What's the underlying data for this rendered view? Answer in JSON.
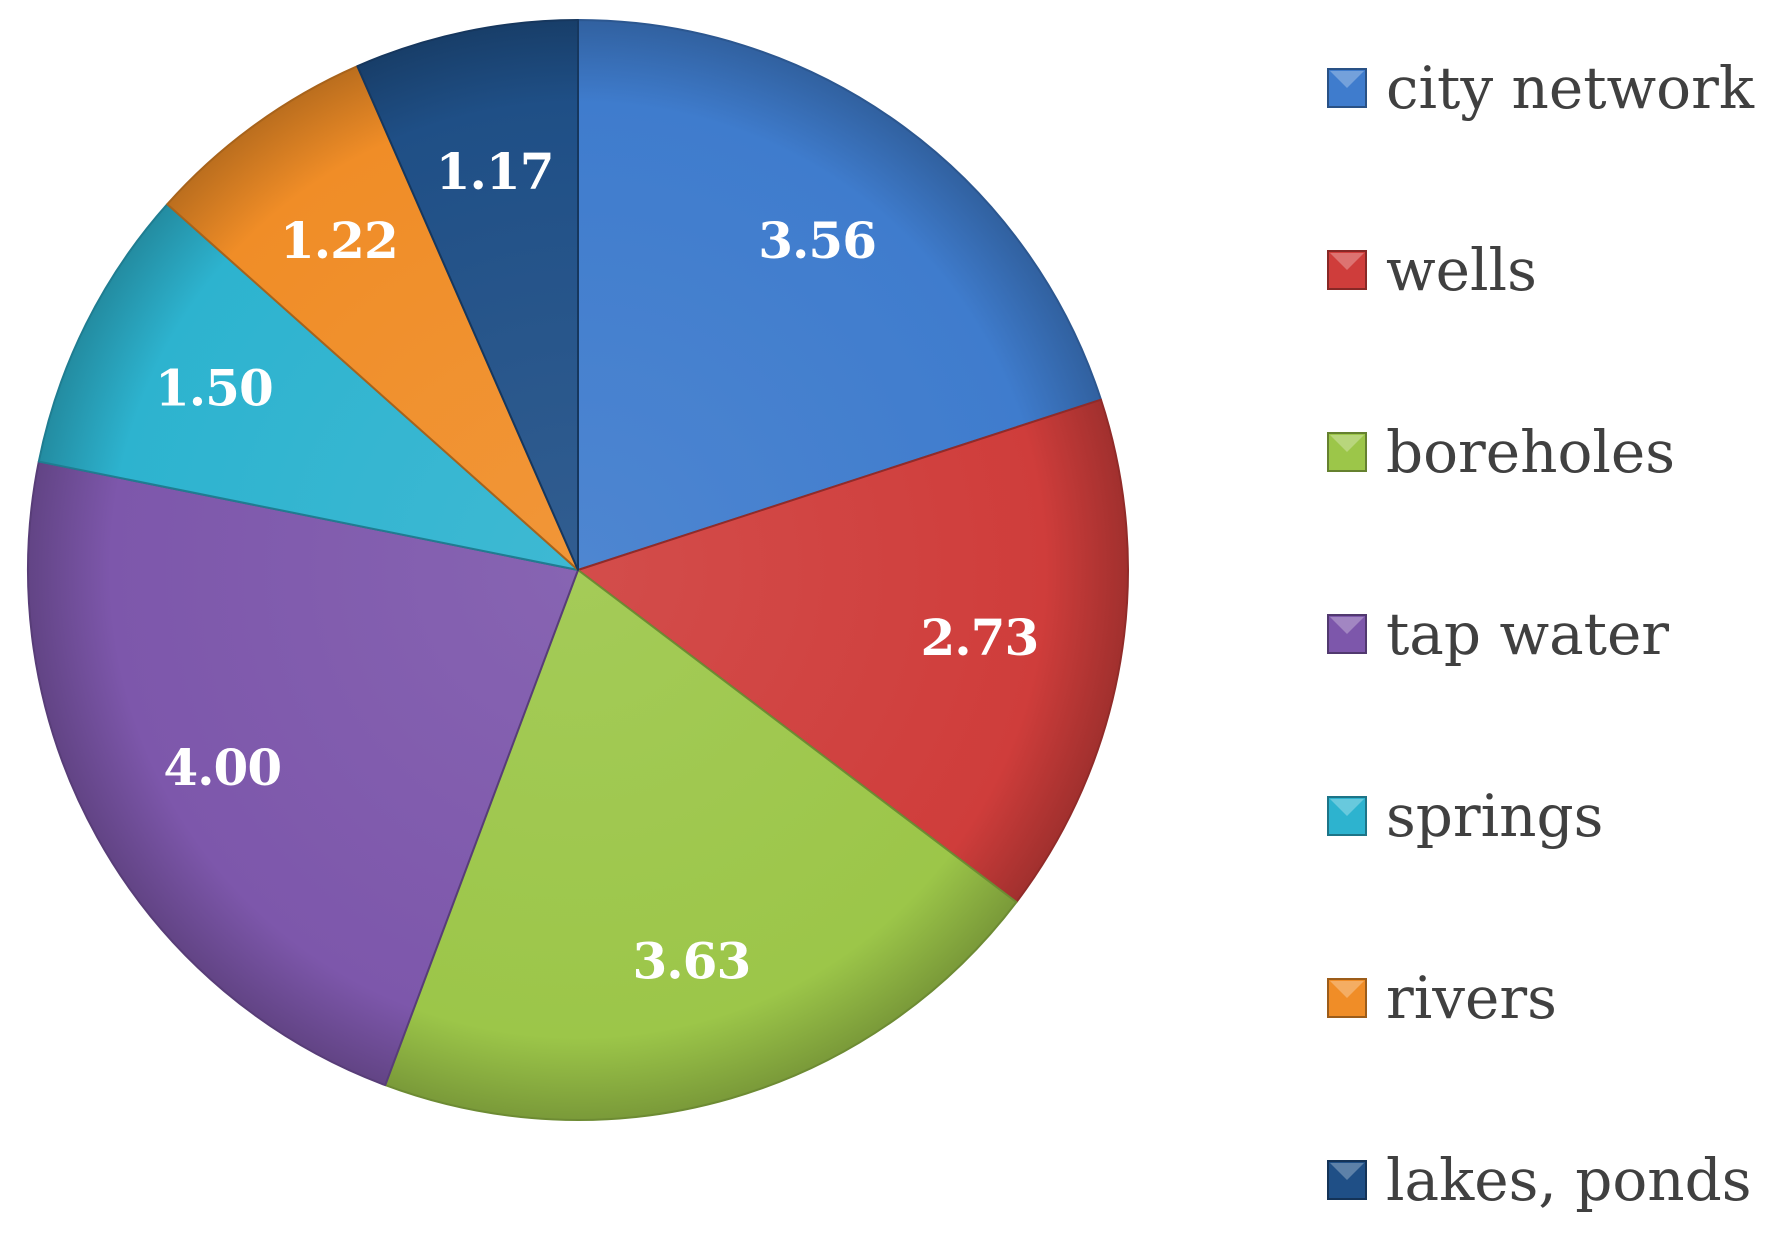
{
  "chart_data": {
    "type": "pie",
    "title": "",
    "categories": [
      "city network",
      "wells",
      "boreholes",
      "tap water",
      "springs",
      "rivers",
      "lakes, ponds"
    ],
    "values": [
      3.56,
      2.73,
      3.63,
      4.0,
      1.5,
      1.22,
      1.17
    ],
    "data_labels": [
      "3.56",
      "2.73",
      "3.63",
      "4.00",
      "1.50",
      "1.22",
      "1.17"
    ],
    "colors": [
      "#3f7ccd",
      "#cf3d3b",
      "#9cc649",
      "#7d57ab",
      "#2db3cf",
      "#f08d27",
      "#1f4f86"
    ],
    "start_angle_deg": 0,
    "direction": "clockwise",
    "legend_placement": "right"
  }
}
